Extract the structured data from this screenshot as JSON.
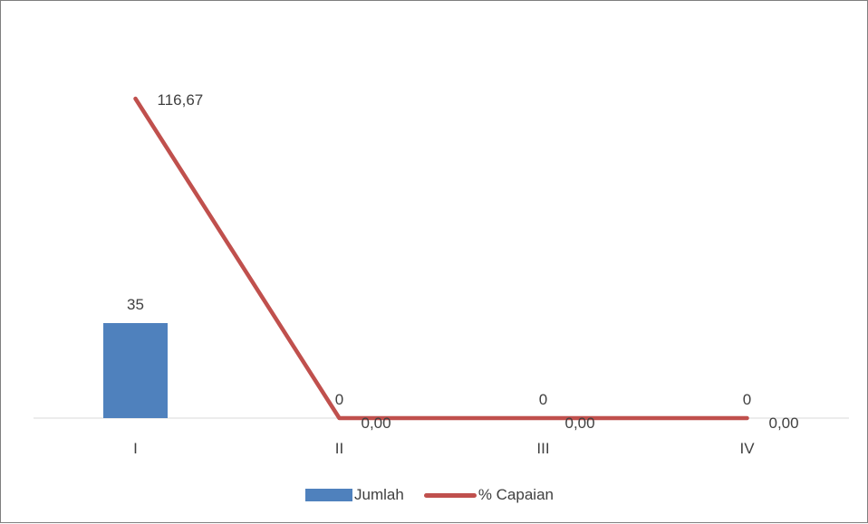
{
  "chart_data": {
    "type": "bar",
    "categories": [
      "I",
      "II",
      "III",
      "IV"
    ],
    "series": [
      {
        "name": "Jumlah",
        "type": "bar",
        "color": "#4f81bd",
        "values": [
          35,
          0,
          0,
          0
        ],
        "labels": [
          "35",
          "0",
          "0",
          "0"
        ]
      },
      {
        "name": "% Capaian",
        "type": "line",
        "color": "#c0504d",
        "values": [
          116.67,
          0,
          0,
          0
        ],
        "labels": [
          "116,67",
          "0,00",
          "0,00",
          "0,00"
        ]
      }
    ],
    "legend_position": "bottom",
    "grid": false
  }
}
